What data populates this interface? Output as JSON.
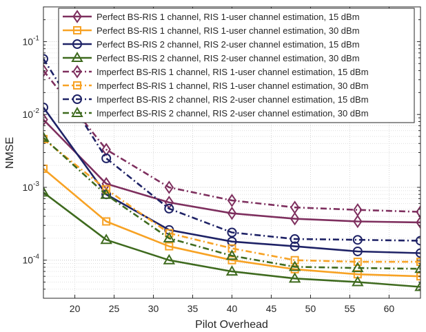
{
  "chart_data": {
    "type": "line",
    "title": "",
    "xlabel": "Pilot Overhead",
    "ylabel": "NMSE",
    "xlim": [
      16,
      64
    ],
    "ylim": [
      3e-05,
      0.3
    ],
    "yscale": "log",
    "grid": true,
    "minor_grid": true,
    "legend_position": "top-right",
    "xticks": [
      20,
      25,
      30,
      35,
      40,
      45,
      50,
      55,
      60
    ],
    "xtick_labels": [
      "20",
      "25",
      "30",
      "35",
      "40",
      "45",
      "50",
      "55",
      "60"
    ],
    "yticks": [
      0.0001,
      0.001,
      0.01,
      0.1
    ],
    "ytick_base": "10",
    "ytick_exponents": [
      "-4",
      "-3",
      "-2",
      "-1"
    ],
    "x": [
      16,
      24,
      32,
      40,
      48,
      56,
      64
    ],
    "series": [
      {
        "name": "Perfect BS-RIS 1 channel, RIS 1-user channel estimation, 15 dBm",
        "color": "#7E2F5E",
        "marker": "diamond",
        "dash": "solid",
        "values": [
          0.0085,
          0.00112,
          0.00062,
          0.00044,
          0.00037,
          0.00034,
          0.00033
        ]
      },
      {
        "name": "Perfect BS-RIS 1 channel, RIS 1-user channel estimation, 30 dBm",
        "color": "#F7A224",
        "marker": "square",
        "dash": "solid",
        "values": [
          0.0018,
          0.00034,
          0.000155,
          0.0001,
          7.5e-05,
          6.4e-05,
          6e-05
        ]
      },
      {
        "name": "Perfect BS-RIS 2 channel, RIS 2-user channel estimation, 15 dBm",
        "color": "#1E2266",
        "marker": "circle",
        "dash": "solid",
        "values": [
          0.0125,
          0.0008,
          0.00026,
          0.00018,
          0.000155,
          0.000132,
          0.000125
        ]
      },
      {
        "name": "Perfect BS-RIS 2 channel, RIS 2-user channel estimation, 30 dBm",
        "color": "#3E6A1E",
        "marker": "triangle",
        "dash": "solid",
        "values": [
          0.00085,
          0.00019,
          0.0001,
          7e-05,
          5.6e-05,
          5e-05,
          4.3e-05
        ]
      },
      {
        "name": "Imperfect BS-RIS 1 channel, RIS 1-user channel estimation, 15 dBm",
        "color": "#7E2F5E",
        "marker": "diamond",
        "dash": "dashdot",
        "values": [
          0.04,
          0.0033,
          0.001,
          0.00066,
          0.00053,
          0.00049,
          0.00046
        ]
      },
      {
        "name": "Imperfect BS-RIS 1 channel, RIS 1-user channel estimation, 30 dBm",
        "color": "#F7A224",
        "marker": "square",
        "dash": "dashdot",
        "values": [
          0.0046,
          0.00094,
          0.000235,
          0.000145,
          0.0001,
          9.5e-05,
          9.5e-05
        ]
      },
      {
        "name": "Imperfect BS-RIS 2 channel, RIS 2-user channel estimation, 15 dBm",
        "color": "#1E2266",
        "marker": "circle",
        "dash": "dashdot",
        "values": [
          0.058,
          0.0025,
          0.00051,
          0.00024,
          0.000195,
          0.00019,
          0.000185
        ]
      },
      {
        "name": "Imperfect BS-RIS 2 channel, RIS 2-user channel estimation, 30 dBm",
        "color": "#3E6A1E",
        "marker": "triangle",
        "dash": "dashdot",
        "values": [
          0.0048,
          0.00079,
          0.0002,
          0.000115,
          8.1e-05,
          7.8e-05,
          7.6e-05
        ]
      }
    ]
  }
}
